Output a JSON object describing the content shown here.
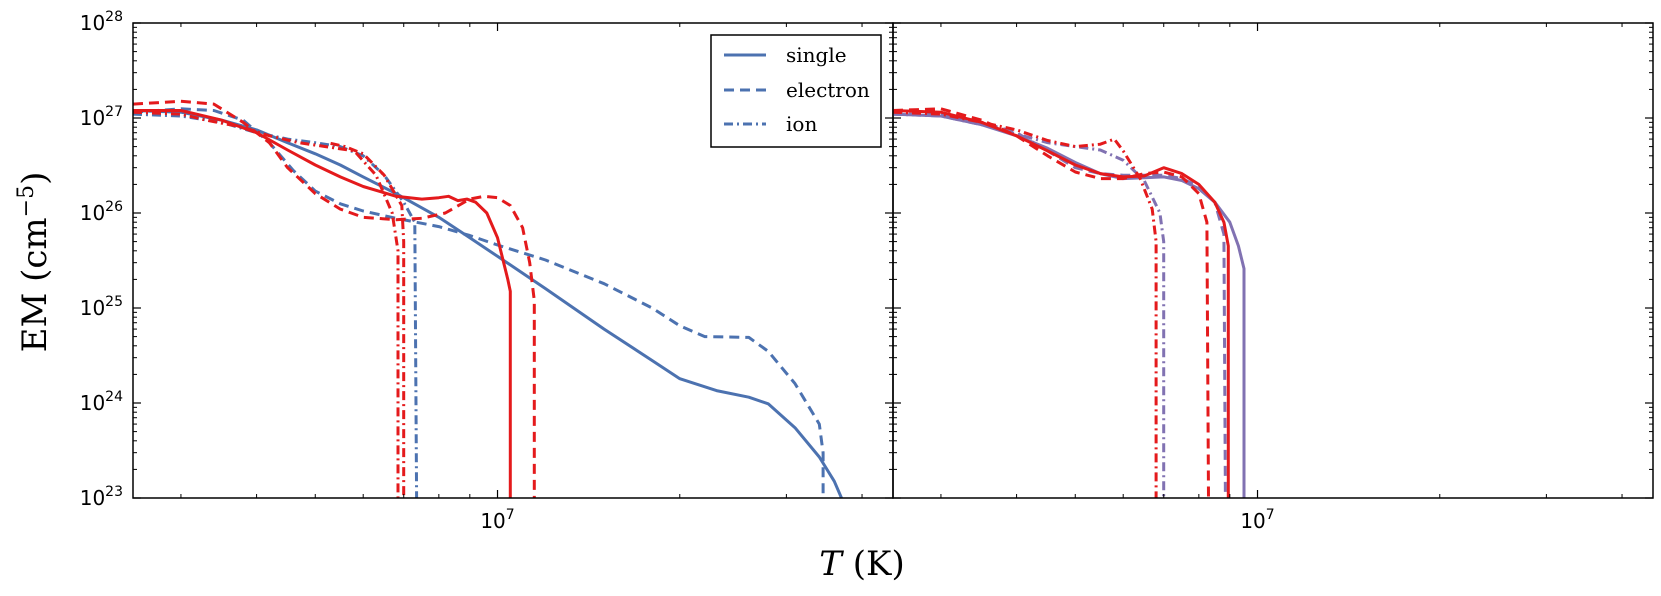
{
  "chart_data": [
    {
      "type": "line",
      "panel": "left",
      "xscale": "log",
      "yscale": "log",
      "xlim": [
        2500000,
        45000000
      ],
      "ylim": [
        1e+23,
        1e+28
      ],
      "xticks": [
        {
          "value": 10000000,
          "base": "10",
          "exp": "7"
        }
      ],
      "yticks": [
        {
          "value": 1e+23,
          "base": "10",
          "exp": "23"
        },
        {
          "value": 1e+24,
          "base": "10",
          "exp": "24"
        },
        {
          "value": 1e+25,
          "base": "10",
          "exp": "25"
        },
        {
          "value": 1e+26,
          "base": "10",
          "exp": "26"
        },
        {
          "value": 1e+27,
          "base": "10",
          "exp": "27"
        },
        {
          "value": 1e+28,
          "base": "10",
          "exp": "28"
        }
      ],
      "ylabel": {
        "main": "EM (cm",
        "exp": "−5",
        "close": ")"
      },
      "legend": {
        "position": "top-right",
        "entries": [
          {
            "label": "single",
            "style": "solid"
          },
          {
            "label": "electron",
            "style": "dashed"
          },
          {
            "label": "ion",
            "style": "dashdot"
          }
        ]
      },
      "series": [
        {
          "name": "single",
          "model": "blue",
          "color": "#4c72b0",
          "style": "solid",
          "points": [
            [
              2500000.0,
              1.2e+27
            ],
            [
              3000000.0,
              1.15e+27
            ],
            [
              3500000.0,
              9.5e+26
            ],
            [
              4000000.0,
              7.5e+26
            ],
            [
              4500000.0,
              5.5e+26
            ],
            [
              5000000.0,
              4.2e+26
            ],
            [
              5500000.0,
              3.2e+26
            ],
            [
              6000000.0,
              2.4e+26
            ],
            [
              6800000.0,
              1.6e+26
            ],
            [
              8000000.0,
              9e+25
            ],
            [
              9000000.0,
              5.5e+25
            ],
            [
              10000000.0,
              3.5e+25
            ],
            [
              12000000.0,
              1.6e+25
            ],
            [
              15000000.0,
              6e+24
            ],
            [
              18000000.0,
              2.8e+24
            ],
            [
              20000000.0,
              1.8e+24
            ],
            [
              23000000.0,
              1.35e+24
            ],
            [
              26000000.0,
              1.15e+24
            ],
            [
              28000000.0,
              9.8e+23
            ],
            [
              31000000.0,
              5.5e+23
            ],
            [
              34000000.0,
              2.7e+23
            ],
            [
              36000000.0,
              1.5e+23
            ],
            [
              37000000.0,
              1e+23
            ]
          ]
        },
        {
          "name": "electron",
          "model": "blue",
          "color": "#4c72b0",
          "style": "dashed",
          "points": [
            [
              2500000.0,
              1.15e+27
            ],
            [
              3000000.0,
              1.25e+27
            ],
            [
              3400000.0,
              1.2e+27
            ],
            [
              3800000.0,
              9.5e+26
            ],
            [
              4200000.0,
              5.5e+26
            ],
            [
              4600000.0,
              2.8e+26
            ],
            [
              5000000.0,
              1.7e+26
            ],
            [
              5500000.0,
              1.25e+26
            ],
            [
              6000000.0,
              1.05e+26
            ],
            [
              6800000.0,
              8.8e+25
            ],
            [
              8000000.0,
              7.2e+25
            ],
            [
              9000000.0,
              5.8e+25
            ],
            [
              10000000.0,
              4.6e+25
            ],
            [
              12000000.0,
              3.2e+25
            ],
            [
              15000000.0,
              1.8e+25
            ],
            [
              18000000.0,
              1e+25
            ],
            [
              20000000.0,
              6.5e+24
            ],
            [
              22000000.0,
              5e+24
            ],
            [
              26000000.0,
              4.9e+24
            ],
            [
              28000000.0,
              3.5e+24
            ],
            [
              31000000.0,
              1.6e+24
            ],
            [
              34000000.0,
              6e+23
            ],
            [
              34500000.0,
              3e+23
            ],
            [
              34500000.0,
              1e+23
            ]
          ]
        },
        {
          "name": "ion",
          "model": "blue",
          "color": "#4c72b0",
          "style": "dashdot",
          "points": [
            [
              2500000.0,
              1.1e+27
            ],
            [
              3000000.0,
              1.05e+27
            ],
            [
              3500000.0,
              9e+26
            ],
            [
              4000000.0,
              7e+26
            ],
            [
              4500000.0,
              6e+26
            ],
            [
              5000000.0,
              5.5e+26
            ],
            [
              5500000.0,
              5e+26
            ],
            [
              6000000.0,
              4e+26
            ],
            [
              6500000.0,
              2.5e+26
            ],
            [
              7000000.0,
              1.3e+26
            ],
            [
              7300000.0,
              8e+25
            ],
            [
              7350000.0,
              1e+23
            ]
          ]
        },
        {
          "name": "single",
          "model": "red",
          "color": "#e41a1c",
          "style": "solid",
          "points": [
            [
              2500000.0,
              1.2e+27
            ],
            [
              3000000.0,
              1.2e+27
            ],
            [
              3500000.0,
              9.5e+26
            ],
            [
              4000000.0,
              7e+26
            ],
            [
              4500000.0,
              4.6e+26
            ],
            [
              5000000.0,
              3.2e+26
            ],
            [
              5500000.0,
              2.4e+26
            ],
            [
              6000000.0,
              1.9e+26
            ],
            [
              6800000.0,
              1.5e+26
            ],
            [
              7500000.0,
              1.4e+26
            ],
            [
              8000000.0,
              1.45e+26
            ],
            [
              8300000.0,
              1.5e+26
            ],
            [
              8600000.0,
              1.35e+26
            ],
            [
              8900000.0,
              1.4e+26
            ],
            [
              9200000.0,
              1.3e+26
            ],
            [
              9600000.0,
              1e+26
            ],
            [
              10000000.0,
              5.5e+25
            ],
            [
              10400000.0,
              2e+25
            ],
            [
              10500000.0,
              1.5e+25
            ],
            [
              10500000.0,
              1e+23
            ]
          ]
        },
        {
          "name": "electron",
          "model": "red",
          "color": "#e41a1c",
          "style": "dashed",
          "points": [
            [
              2500000.0,
              1.4e+27
            ],
            [
              3000000.0,
              1.5e+27
            ],
            [
              3400000.0,
              1.4e+27
            ],
            [
              3800000.0,
              9e+26
            ],
            [
              4200000.0,
              5.5e+26
            ],
            [
              4500000.0,
              3e+26
            ],
            [
              5000000.0,
              1.6e+26
            ],
            [
              5500000.0,
              1.1e+26
            ],
            [
              6000000.0,
              9e+25
            ],
            [
              6800000.0,
              8.5e+25
            ],
            [
              7500000.0,
              8.8e+25
            ],
            [
              8200000.0,
              1e+26
            ],
            [
              9000000.0,
              1.4e+26
            ],
            [
              9500000.0,
              1.5e+26
            ],
            [
              10000000.0,
              1.45e+26
            ],
            [
              10500000.0,
              1.2e+26
            ],
            [
              11000000.0,
              7e+25
            ],
            [
              11300000.0,
              3e+25
            ],
            [
              11500000.0,
              1.2e+25
            ],
            [
              11500000.0,
              1e+23
            ]
          ]
        },
        {
          "name": "ion",
          "model": "red",
          "color": "#e41a1c",
          "style": "dashdot",
          "points": [
            [
              2500000.0,
              1.15e+27
            ],
            [
              3000000.0,
              1.1e+27
            ],
            [
              3300000.0,
              9.5e+26
            ],
            [
              3800000.0,
              8e+26
            ],
            [
              4200000.0,
              6.5e+26
            ],
            [
              4700000.0,
              5.5e+26
            ],
            [
              5200000.0,
              5e+26
            ],
            [
              5800000.0,
              4.5e+26
            ],
            [
              6300000.0,
              2.5e+26
            ],
            [
              6700000.0,
              1e+26
            ],
            [
              6850000.0,
              4e+25
            ],
            [
              6850000.0,
              1e+23
            ]
          ]
        },
        {
          "name": "ion",
          "model": "red",
          "color": "#e41a1c",
          "style": "dashdot",
          "points": [
            [
              5300000.0,
              5.4e+26
            ],
            [
              5600000.0,
              5e+26
            ],
            [
              6000000.0,
              4.2e+26
            ],
            [
              6500000.0,
              2.5e+26
            ],
            [
              6950000.0,
              1.2e+26
            ],
            [
              7000000.0,
              5e+25
            ],
            [
              7000000.0,
              1e+23
            ]
          ]
        }
      ]
    },
    {
      "type": "line",
      "panel": "right",
      "xscale": "log",
      "yscale": "log",
      "xlim": [
        2500000,
        45000000
      ],
      "ylim": [
        1e+23,
        1e+28
      ],
      "xticks": [
        {
          "value": 10000000,
          "base": "10",
          "exp": "7"
        }
      ],
      "series": [
        {
          "name": "single",
          "model": "purple",
          "color": "#8172b2",
          "style": "solid",
          "points": [
            [
              2500000.0,
              1.1e+27
            ],
            [
              3000000.0,
              1.05e+27
            ],
            [
              3500000.0,
              8.5e+26
            ],
            [
              4000000.0,
              6.5e+26
            ],
            [
              4500000.0,
              4.8e+26
            ],
            [
              5000000.0,
              3.4e+26
            ],
            [
              5500000.0,
              2.6e+26
            ],
            [
              6000000.0,
              2.3e+26
            ],
            [
              6500000.0,
              2.35e+26
            ],
            [
              7000000.0,
              2.4e+26
            ],
            [
              7500000.0,
              2.2e+26
            ],
            [
              8000000.0,
              1.8e+26
            ],
            [
              8500000.0,
              1.3e+26
            ],
            [
              9000000.0,
              8e+25
            ],
            [
              9300000.0,
              4.5e+25
            ],
            [
              9500000.0,
              2.6e+25
            ],
            [
              9500000.0,
              1e+23
            ]
          ]
        },
        {
          "name": "electron",
          "model": "purple",
          "color": "#8172b2",
          "style": "dashed",
          "points": [
            [
              2500000.0,
              1.1e+27
            ],
            [
              3000000.0,
              1.1e+27
            ],
            [
              3500000.0,
              9e+26
            ],
            [
              4000000.0,
              7e+26
            ],
            [
              4500000.0,
              4.5e+26
            ],
            [
              5000000.0,
              3e+26
            ],
            [
              5500000.0,
              2.6e+26
            ],
            [
              6000000.0,
              2.5e+26
            ],
            [
              6500000.0,
              2.5e+26
            ],
            [
              7000000.0,
              2.5e+26
            ],
            [
              7500000.0,
              2.3e+26
            ],
            [
              8000000.0,
              1.9e+26
            ],
            [
              8500000.0,
              1.3e+26
            ],
            [
              8800000.0,
              6e+25
            ],
            [
              8850000.0,
              1e+23
            ]
          ]
        },
        {
          "name": "ion",
          "model": "purple",
          "color": "#8172b2",
          "style": "dashdot",
          "points": [
            [
              2500000.0,
              1.1e+27
            ],
            [
              3000000.0,
              1.05e+27
            ],
            [
              3500000.0,
              8.5e+26
            ],
            [
              4000000.0,
              6.8e+26
            ],
            [
              4500000.0,
              5.5e+26
            ],
            [
              5000000.0,
              5e+26
            ],
            [
              5500000.0,
              4.6e+26
            ],
            [
              6000000.0,
              3.6e+26
            ],
            [
              6500000.0,
              2.2e+26
            ],
            [
              6900000.0,
              1e+26
            ],
            [
              7000000.0,
              5e+25
            ],
            [
              7000000.0,
              1e+23
            ]
          ]
        },
        {
          "name": "single",
          "model": "red",
          "color": "#e41a1c",
          "style": "solid",
          "points": [
            [
              2500000.0,
              1.2e+27
            ],
            [
              3000000.0,
              1.15e+27
            ],
            [
              3500000.0,
              9e+26
            ],
            [
              4000000.0,
              6.5e+26
            ],
            [
              4500000.0,
              4.5e+26
            ],
            [
              5000000.0,
              3.2e+26
            ],
            [
              5500000.0,
              2.6e+26
            ],
            [
              6000000.0,
              2.4e+26
            ],
            [
              6500000.0,
              2.45e+26
            ],
            [
              7000000.0,
              3e+26
            ],
            [
              7500000.0,
              2.6e+26
            ],
            [
              8000000.0,
              2e+26
            ],
            [
              8500000.0,
              1.3e+26
            ],
            [
              8800000.0,
              8e+25
            ],
            [
              8950000.0,
              4.5e+25
            ],
            [
              8950000.0,
              1e+23
            ]
          ]
        },
        {
          "name": "electron",
          "model": "red",
          "color": "#e41a1c",
          "style": "dashed",
          "points": [
            [
              2500000.0,
              1.2e+27
            ],
            [
              3000000.0,
              1.25e+27
            ],
            [
              3500000.0,
              9.5e+26
            ],
            [
              4000000.0,
              6.5e+26
            ],
            [
              4500000.0,
              4e+26
            ],
            [
              5000000.0,
              2.7e+26
            ],
            [
              5500000.0,
              2.3e+26
            ],
            [
              6000000.0,
              2.3e+26
            ],
            [
              6500000.0,
              2.6e+26
            ],
            [
              7000000.0,
              2.7e+26
            ],
            [
              7500000.0,
              2.4e+26
            ],
            [
              8000000.0,
              1.6e+26
            ],
            [
              8250000.0,
              8e+25
            ],
            [
              8300000.0,
              1e+23
            ]
          ]
        },
        {
          "name": "ion",
          "model": "red",
          "color": "#e41a1c",
          "style": "dashdot",
          "points": [
            [
              2500000.0,
              1.15e+27
            ],
            [
              3000000.0,
              1.1e+27
            ],
            [
              3500000.0,
              9e+26
            ],
            [
              4000000.0,
              7.5e+26
            ],
            [
              4500000.0,
              5.8e+26
            ],
            [
              5000000.0,
              5e+26
            ],
            [
              5500000.0,
              5.3e+26
            ],
            [
              5800000.0,
              6e+26
            ],
            [
              6000000.0,
              4.5e+26
            ],
            [
              6400000.0,
              2.3e+26
            ],
            [
              6700000.0,
              1.1e+26
            ],
            [
              6800000.0,
              5e+25
            ],
            [
              6800000.0,
              1e+23
            ]
          ]
        }
      ]
    }
  ],
  "shared": {
    "xlabel": {
      "var": "T",
      "unit": "(K)"
    }
  }
}
